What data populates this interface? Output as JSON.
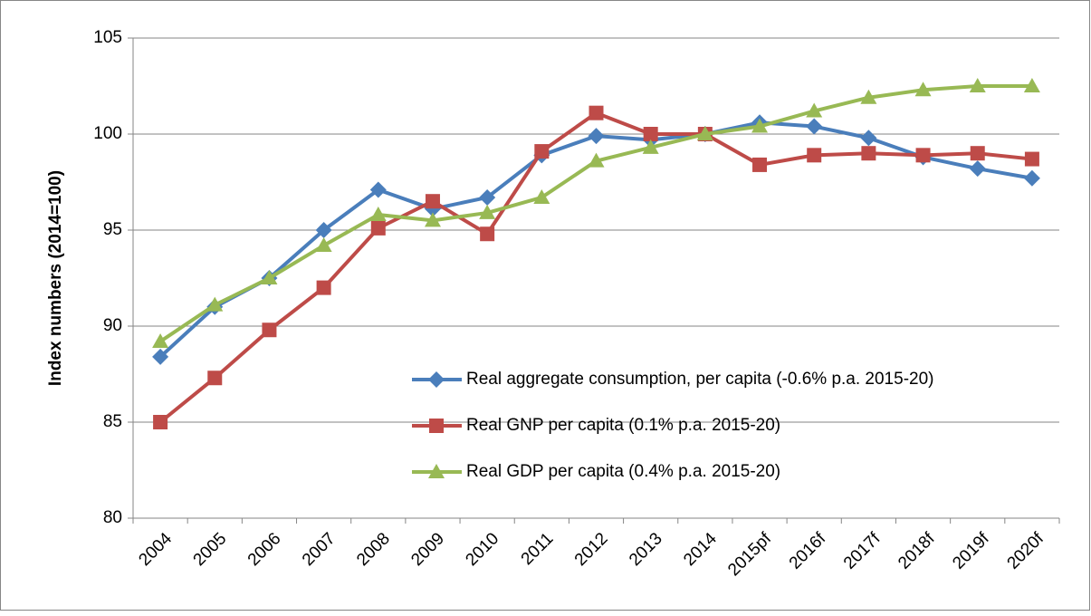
{
  "chart_data": {
    "type": "line",
    "y_label": "Index numbers (2014=100)",
    "categories": [
      "2004",
      "2005",
      "2006",
      "2007",
      "2008",
      "2009",
      "2010",
      "2011",
      "2012",
      "2013",
      "2014",
      "2015pf",
      "2016f",
      "2017f",
      "2018f",
      "2019f",
      "2020f"
    ],
    "series": [
      {
        "name": "Real aggregate consumption, per capita (-0.6% p.a. 2015-20)",
        "color": "#4a7ebb",
        "marker": "diamond",
        "values": [
          88.4,
          91.0,
          92.5,
          95.0,
          97.1,
          96.1,
          96.7,
          98.9,
          99.9,
          99.7,
          100.0,
          100.6,
          100.4,
          99.8,
          98.8,
          98.2,
          97.7
        ]
      },
      {
        "name": "Real GNP per capita (0.1% p.a. 2015-20)",
        "color": "#be4b48",
        "marker": "square",
        "values": [
          85.0,
          87.3,
          89.8,
          92.0,
          95.1,
          96.5,
          94.8,
          99.1,
          101.1,
          100.0,
          100.0,
          98.4,
          98.9,
          99.0,
          98.9,
          99.0,
          98.7
        ]
      },
      {
        "name": "Real GDP per capita (0.4% p.a. 2015-20)",
        "color": "#98b954",
        "marker": "triangle",
        "values": [
          89.2,
          91.1,
          92.5,
          94.2,
          95.8,
          95.5,
          95.9,
          96.7,
          98.6,
          99.3,
          100.0,
          100.4,
          101.2,
          101.9,
          102.3,
          102.5,
          102.5
        ]
      }
    ],
    "ylim": [
      80,
      105
    ],
    "yticks": [
      80,
      85,
      90,
      95,
      100,
      105
    ],
    "grid": true,
    "legend": "lower right"
  }
}
